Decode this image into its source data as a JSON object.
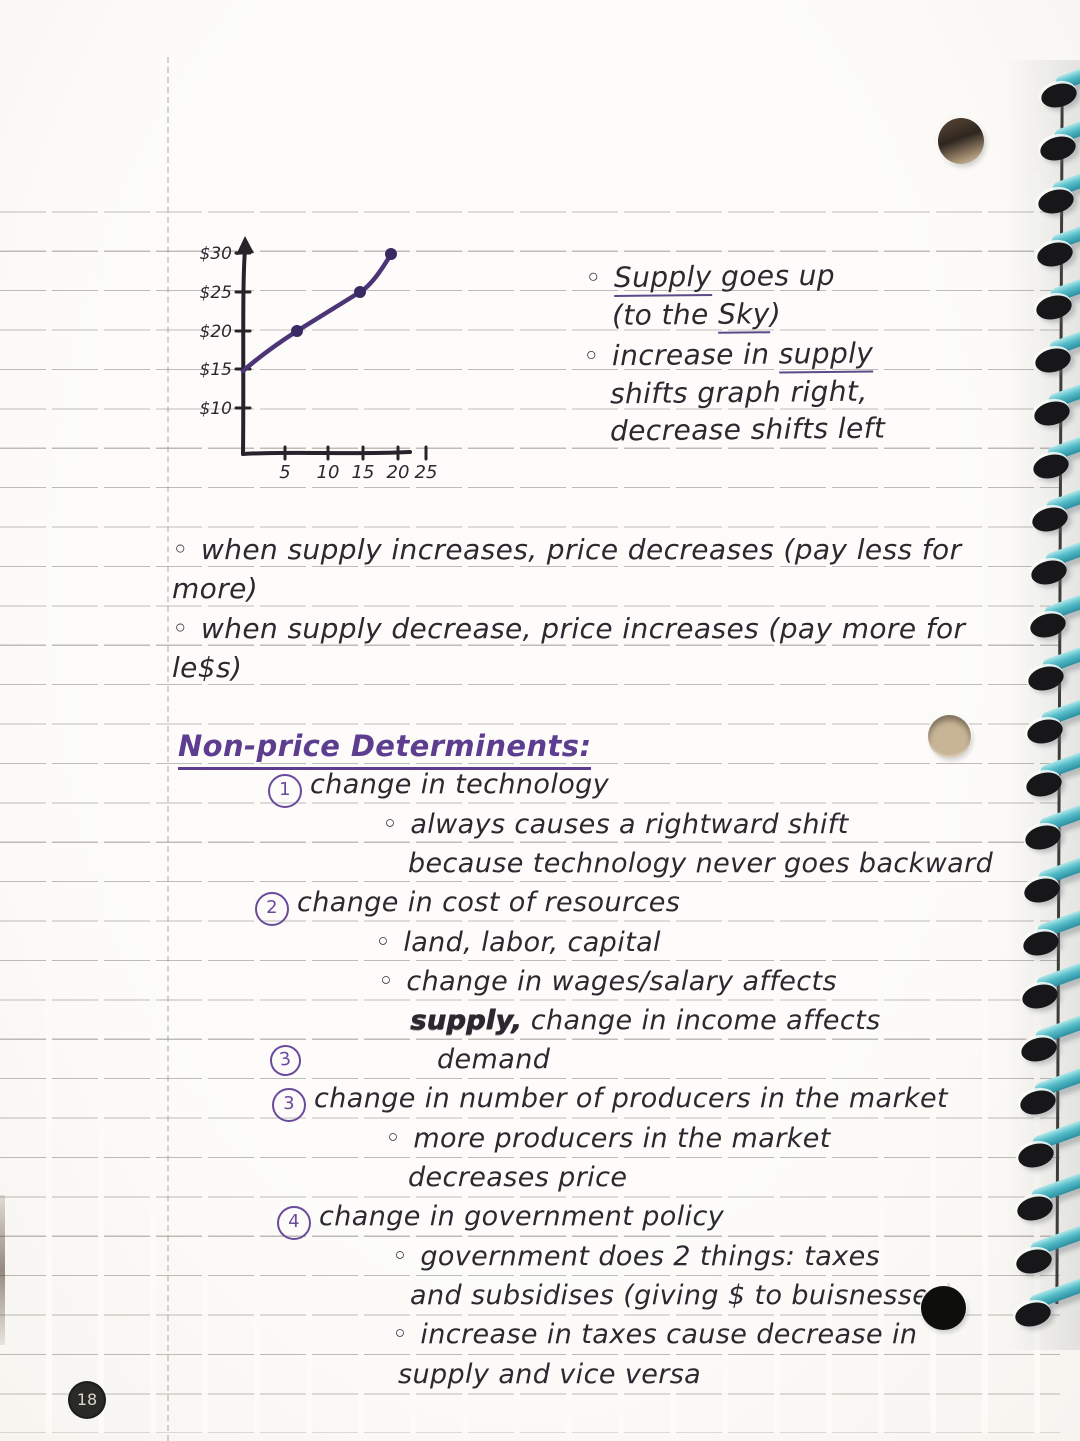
{
  "page": {
    "number": "18"
  },
  "colors": {
    "ink_black": "#2b2830",
    "ink_purple": "#5c3d90",
    "curve_purple": "#4b3577",
    "spiral_teal": "#4fb9c6"
  },
  "chart_data": {
    "type": "line",
    "title": "",
    "xlabel": "",
    "ylabel": "",
    "x_tick_labels": [
      "5",
      "10",
      "15",
      "20",
      "25"
    ],
    "y_tick_labels": [
      "$30",
      "$25",
      "$20",
      "$15",
      "$10"
    ],
    "xlim": [
      0,
      27
    ],
    "ylim": [
      7,
      32
    ],
    "grid": false,
    "legend": "none",
    "series": [
      {
        "name": "supply curve",
        "x": [
          0,
          6,
          13,
          18
        ],
        "y": [
          15,
          20,
          25,
          30
        ],
        "marked_points": [
          [
            6,
            20
          ],
          [
            13,
            25
          ],
          [
            18,
            30
          ]
        ],
        "color": "#4b3577"
      }
    ]
  },
  "graph_notes": {
    "b1_l1_u": "Supply",
    "b1_l1_rest": " goes up",
    "b1_l2_pre": "(to the ",
    "b1_l2_u": "Sky",
    "b1_l2_post": ")",
    "b2_l1_pre": "increase in ",
    "b2_l1_u": "supply",
    "b2_l2": "shifts graph right,",
    "b2_l3": "decrease shifts left"
  },
  "mid_notes": {
    "b1_l1": "when supply increases, price decreases (pay less for",
    "b1_l2": "more)",
    "b2_l1": "when supply decrease, price increases (pay more for",
    "b2_l2": "le$s)"
  },
  "notes": {
    "heading": "Non-price Determinents:",
    "item1": {
      "num": "1",
      "title": "change in technology",
      "sub1": "always causes a rightward shift",
      "sub1b": "because technology never goes backward"
    },
    "item2": {
      "num": "2",
      "title": "change in cost of resources",
      "sub1": "land, labor, capital",
      "sub2": "change in wages/salary affects",
      "sub2b_word": "supply,",
      "sub2b_rest": " change in income affects",
      "sub2c": "demand",
      "stray_num": "3"
    },
    "item3": {
      "num": "3",
      "title": "change in number of producers in the market",
      "sub1": "more producers in the market",
      "sub1b": "decreases price"
    },
    "item4": {
      "num": "4",
      "title": "change in government policy",
      "sub1": "government does 2 things: taxes",
      "sub1b": "and subsidises (giving $ to buisnesses)",
      "sub2": "increase in taxes cause decrease in",
      "sub2b": "supply and vice versa"
    }
  }
}
